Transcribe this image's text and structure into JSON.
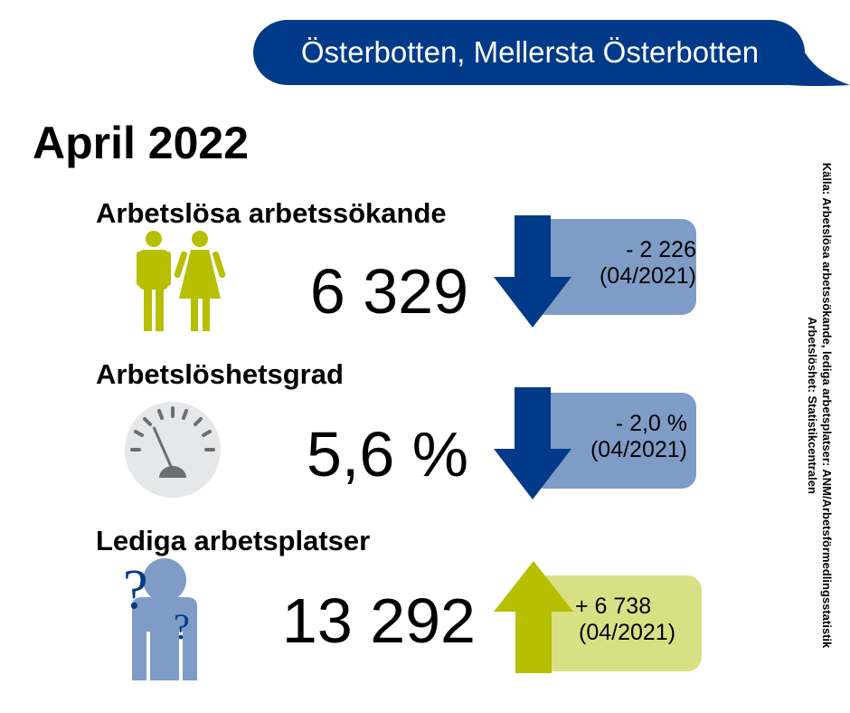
{
  "region": "Österbotten, Mellersta Österbotten",
  "period": "April 2022",
  "colors": {
    "navy": "#003a88",
    "change_down_box": "#7f9cc6",
    "olive": "#b6bf00",
    "change_up_box": "#d9e084",
    "gauge_bg": "#e6e7e8",
    "gauge_marks": "#6d6e71",
    "person_blue": "#7f9cc6"
  },
  "stats": [
    {
      "label": "Arbetslösa arbetssökande",
      "value": "6 329",
      "change": "- 2 226",
      "reference": "(04/2021)",
      "direction": "down",
      "icon": "man-woman-icon"
    },
    {
      "label": "Arbetslöshetsgrad",
      "value": "5,6 %",
      "change": "- 2,0 %",
      "reference": "(04/2021)",
      "direction": "down",
      "icon": "gauge-icon"
    },
    {
      "label": "Lediga arbetsplatser",
      "value": "13 292",
      "change": "+ 6 738",
      "reference": "(04/2021)",
      "direction": "up",
      "icon": "person-question-icon"
    }
  ],
  "source": {
    "line1": "Källa: Arbetslösa arbetssökande, lediga arbetsplatser: ANM/Arbetsförmedlingsstatistik",
    "line2": "Arbetslöshet: Statistikcentralen"
  }
}
